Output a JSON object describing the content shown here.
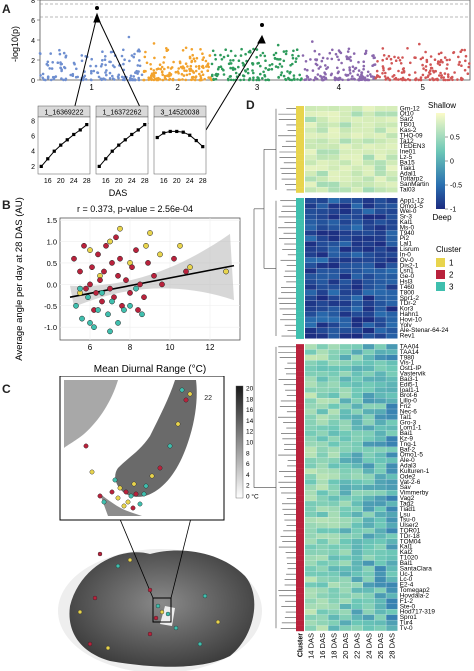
{
  "panel_labels": {
    "a": "A",
    "b": "B",
    "c": "C",
    "d": "D"
  },
  "panel_a": {
    "ylabel": "-log10(p)",
    "yticks": [
      "0",
      "2",
      "4",
      "6",
      "8"
    ],
    "chromosomes": [
      "1",
      "2",
      "3",
      "4",
      "5"
    ],
    "chrom_colors": [
      "#6f8fd0",
      "#f2a32e",
      "#2e9b5c",
      "#8a68ad",
      "#d15656"
    ],
    "threshold_lines": [
      7.6,
      6.3
    ],
    "subplot_titles": [
      "1_16369222",
      "1_16372262",
      "3_14520038"
    ],
    "subplot_xticks": [
      "16",
      "20",
      "24",
      "28"
    ],
    "subplot_yticks": [
      "2",
      "4",
      "6",
      "8"
    ],
    "subplot_xlabel": "DAS"
  },
  "chart_data": [
    {
      "type": "line",
      "panel": "A-inset",
      "x": [
        14,
        16,
        18,
        20,
        22,
        24,
        26,
        28
      ],
      "series": [
        {
          "name": "1_16369222",
          "values": [
            2.0,
            3.0,
            4.0,
            4.8,
            5.5,
            6.2,
            6.8,
            7.5
          ]
        },
        {
          "name": "1_16372262",
          "values": [
            2.0,
            3.0,
            4.0,
            4.8,
            5.5,
            6.2,
            6.8,
            7.5
          ]
        },
        {
          "name": "3_14520038",
          "values": [
            5.8,
            6.4,
            6.6,
            6.6,
            6.5,
            6.1,
            5.4,
            4.6
          ]
        }
      ]
    },
    {
      "type": "scatter",
      "panel": "B",
      "title": "r = 0.373, p-value = 2.56e-04",
      "xlabel": "Mean Diurnal Range (°C)",
      "ylabel": "Average angle per day at 28 DAS (AU)",
      "xlim": [
        4.5,
        13.5
      ],
      "ylim": [
        -1.3,
        1.55
      ],
      "xticks": [
        "6",
        "8",
        "10",
        "12"
      ],
      "yticks": [
        "-1.0",
        "-0.5",
        "0.0",
        "0.5",
        "1.0",
        "1.5"
      ],
      "fit": {
        "intercept": -0.75,
        "slope": 0.09
      },
      "series": [
        {
          "name": "1",
          "color": "#e8d44d",
          "points": [
            [
              6.0,
              0.8
            ],
            [
              7.5,
              1.3
            ],
            [
              8.8,
              0.9
            ],
            [
              9.5,
              0.7
            ],
            [
              10.5,
              0.9
            ],
            [
              11.0,
              0.4
            ],
            [
              6.5,
              0.2
            ],
            [
              8.0,
              0.5
            ],
            [
              9.0,
              1.2
            ],
            [
              12.8,
              0.3
            ],
            [
              5.5,
              -0.2
            ],
            [
              7.0,
              1.0
            ]
          ]
        },
        {
          "name": "2",
          "color": "#b9223c",
          "points": [
            [
              5.2,
              0.6
            ],
            [
              5.5,
              0.3
            ],
            [
              5.8,
              -0.1
            ],
            [
              6.0,
              0.0
            ],
            [
              6.1,
              0.4
            ],
            [
              6.3,
              -0.2
            ],
            [
              6.4,
              0.7
            ],
            [
              6.5,
              0.1
            ],
            [
              6.6,
              -0.4
            ],
            [
              6.7,
              0.3
            ],
            [
              6.8,
              0.9
            ],
            [
              7.0,
              -0.1
            ],
            [
              7.1,
              0.5
            ],
            [
              7.2,
              -0.3
            ],
            [
              7.4,
              0.2
            ],
            [
              7.5,
              0.6
            ],
            [
              7.6,
              -0.5
            ],
            [
              7.8,
              0.1
            ],
            [
              8.0,
              -0.2
            ],
            [
              8.1,
              0.4
            ],
            [
              8.3,
              0.8
            ],
            [
              8.5,
              0.0
            ],
            [
              8.7,
              -0.3
            ],
            [
              8.9,
              0.5
            ],
            [
              9.2,
              0.2
            ],
            [
              9.6,
              0.0
            ],
            [
              10.2,
              0.6
            ],
            [
              10.8,
              0.3
            ],
            [
              5.7,
              0.9
            ],
            [
              6.2,
              -0.6
            ],
            [
              7.3,
              1.1
            ],
            [
              8.4,
              -0.6
            ]
          ]
        },
        {
          "name": "3",
          "color": "#3fbfae",
          "points": [
            [
              5.3,
              -0.5
            ],
            [
              5.6,
              -0.8
            ],
            [
              5.9,
              -0.3
            ],
            [
              6.2,
              -1.0
            ],
            [
              6.4,
              -0.6
            ],
            [
              6.6,
              -0.2
            ],
            [
              6.9,
              -0.7
            ],
            [
              7.1,
              -0.4
            ],
            [
              7.4,
              -0.9
            ],
            [
              7.7,
              -0.6
            ],
            [
              8.0,
              -0.5
            ],
            [
              8.3,
              -0.1
            ],
            [
              8.6,
              -0.7
            ],
            [
              6.0,
              -0.9
            ],
            [
              7.0,
              -1.1
            ],
            [
              5.5,
              -0.1
            ]
          ]
        }
      ]
    }
  ],
  "panel_c": {
    "legend_ticks": [
      "20",
      "18",
      "16",
      "14",
      "12",
      "10",
      "8",
      "6",
      "4",
      "2",
      "0 °C"
    ]
  },
  "panel_d": {
    "legend_top": "Shallow",
    "legend_bottom": "Deep",
    "scale_ticks": [
      "0.5",
      "0",
      "-0.5",
      "-1"
    ],
    "cluster_title": "Cluster",
    "clusters": [
      {
        "label": "1",
        "color": "#e8d44d",
        "count": 17
      },
      {
        "label": "2",
        "color": "#b9223c",
        "count": 93
      },
      {
        "label": "3",
        "color": "#3fbfae",
        "count": 39
      }
    ],
    "columns": [
      "Cluster",
      "14 DAS",
      "16 DAS",
      "18 DAS",
      "20 DAS",
      "22 DAS",
      "24 DAS",
      "26 DAS",
      "28 DAS"
    ],
    "row_labels_1": [
      "Grn-12",
      "Ot10",
      "Sar2",
      "TB01",
      "Kas-2",
      "THO-09",
      "Ta12",
      "TEDEN3",
      "Ine01",
      "Lz-5",
      "Ba15",
      "Tiak1",
      "Adal1",
      "Tottarp2",
      "SanMartin",
      "Tal03"
    ],
    "row_labels_3": [
      "App1-12",
      "Omo1-5",
      "Wei-0",
      "Sr-3",
      "Kal1",
      "Ms-0",
      "T940",
      "Pi2",
      "Lal1",
      "Lisrum",
      "In-0",
      "Ov-0",
      "Dis2-1",
      "Lsn1",
      "Ge-0",
      "Hsl3",
      "T460",
      "T800",
      "Spr1-2",
      "TDr-2",
      "Kor3",
      "Hahn1",
      "Hovi-10",
      "Yolv",
      "Ale-Stenar-64-24",
      "Rev1"
    ],
    "row_labels_2": [
      "TAA04",
      "TAA14",
      "T980",
      "Vis-1",
      "Ost1-IP",
      "Vastervik",
      "Bai3-1",
      "Edi5-1",
      "Ioal1-1",
      "Brot-6",
      "Lillo-0",
      "Fri2",
      "Nec-6",
      "Tal1",
      "Gro-3",
      "Lom1-1",
      "Bai1",
      "Kz-9",
      "Tng-1",
      "Bat-2",
      "Omo1-5",
      "Ale-0",
      "Adal3",
      "Kulturen-1",
      "Ode2",
      "Vat-2-6",
      "Sav",
      "Vimmerby",
      "Vag2",
      "Tag2",
      "Tiad1",
      "Lsu",
      "Tsu-0",
      "Ulser2",
      "TOR01",
      "TDr-18",
      "TOM04",
      "Kal1",
      "Kal2",
      "T1020",
      "Bal1",
      "SantaClara",
      "Uc-1",
      "Lc-0",
      "E2-4",
      "Tomegap2",
      "Hovdala-2",
      "F1-2",
      "Ste-0",
      "Hod717-319",
      "Spro1",
      "Tur4",
      "Tv-0"
    ]
  }
}
